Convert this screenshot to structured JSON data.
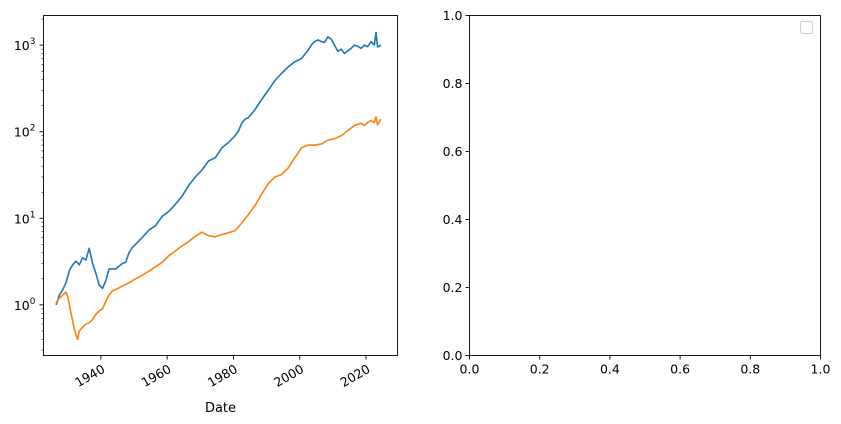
{
  "chart_data": [
    {
      "type": "line",
      "title": "",
      "xlabel": "Date",
      "ylabel": "",
      "yscale": "log",
      "xlim": [
        1922.7,
        2029.5
      ],
      "ylim": [
        0.26,
        2200
      ],
      "grid": false,
      "colors": {
        "blue": "#1f77b4",
        "orange": "#ff7f0e"
      },
      "x_ticks": [
        {
          "value": 1940,
          "label": "1940"
        },
        {
          "value": 1960,
          "label": "1960"
        },
        {
          "value": 1980,
          "label": "1980"
        },
        {
          "value": 2000,
          "label": "2000"
        },
        {
          "value": 2020,
          "label": "2020"
        }
      ],
      "y_ticks": [
        {
          "value": 1,
          "base": "10",
          "exp": "0"
        },
        {
          "value": 10,
          "base": "10",
          "exp": "1"
        },
        {
          "value": 100,
          "base": "10",
          "exp": "2"
        },
        {
          "value": 1000,
          "base": "10",
          "exp": "3"
        }
      ],
      "series": [
        {
          "color": "#1f77b4",
          "points": [
            [
              1926.5,
              1.0
            ],
            [
              1927.5,
              1.3
            ],
            [
              1928.5,
              1.5
            ],
            [
              1929.5,
              1.8
            ],
            [
              1930.5,
              2.5
            ],
            [
              1931.5,
              2.9
            ],
            [
              1932.5,
              3.2
            ],
            [
              1933.5,
              2.9
            ],
            [
              1934.5,
              3.5
            ],
            [
              1935.5,
              3.3
            ],
            [
              1936.5,
              4.5
            ],
            [
              1937.5,
              3.0
            ],
            [
              1938.5,
              2.3
            ],
            [
              1939.5,
              1.7
            ],
            [
              1940.5,
              1.55
            ],
            [
              1941.5,
              1.9
            ],
            [
              1942.5,
              2.6
            ],
            [
              1943.5,
              2.6
            ],
            [
              1944.5,
              2.6
            ],
            [
              1945.5,
              2.8
            ],
            [
              1946.5,
              3.0
            ],
            [
              1947.5,
              3.1
            ],
            [
              1948.5,
              4.0
            ],
            [
              1949.5,
              4.6
            ],
            [
              1950.5,
              5.0
            ],
            [
              1952.5,
              6.0
            ],
            [
              1954.5,
              7.3
            ],
            [
              1956.5,
              8.2
            ],
            [
              1958.5,
              10.5
            ],
            [
              1960.5,
              12.0
            ],
            [
              1962.5,
              14.5
            ],
            [
              1964.5,
              18.0
            ],
            [
              1966.5,
              24.0
            ],
            [
              1968.5,
              30.0
            ],
            [
              1970.5,
              36.0
            ],
            [
              1972.5,
              46.0
            ],
            [
              1974.5,
              50.0
            ],
            [
              1976.5,
              65.0
            ],
            [
              1978.5,
              75.0
            ],
            [
              1980.5,
              90.0
            ],
            [
              1981.5,
              102.0
            ],
            [
              1982.5,
              125.0
            ],
            [
              1983.5,
              140.0
            ],
            [
              1984.5,
              145.0
            ],
            [
              1986.5,
              180.0
            ],
            [
              1988.5,
              235.0
            ],
            [
              1990.5,
              300.0
            ],
            [
              1992.5,
              390.0
            ],
            [
              1994.5,
              470.0
            ],
            [
              1996.5,
              560.0
            ],
            [
              1998.5,
              640.0
            ],
            [
              2000.5,
              700.0
            ],
            [
              2001.5,
              780.0
            ],
            [
              2002.5,
              870.0
            ],
            [
              2003.5,
              1000.0
            ],
            [
              2004.5,
              1100.0
            ],
            [
              2005.5,
              1150.0
            ],
            [
              2006.5,
              1100.0
            ],
            [
              2007.5,
              1080.0
            ],
            [
              2008.5,
              1250.0
            ],
            [
              2009.5,
              1170.0
            ],
            [
              2010.5,
              1000.0
            ],
            [
              2011.5,
              850.0
            ],
            [
              2012.5,
              900.0
            ],
            [
              2013.5,
              800.0
            ],
            [
              2014.5,
              860.0
            ],
            [
              2015.5,
              920.0
            ],
            [
              2016.5,
              1000.0
            ],
            [
              2017.5,
              970.0
            ],
            [
              2018.5,
              920.0
            ],
            [
              2019.5,
              1000.0
            ],
            [
              2020.5,
              960.0
            ],
            [
              2021.5,
              1100.0
            ],
            [
              2022.5,
              1000.0
            ],
            [
              2023.0,
              1400.0
            ],
            [
              2023.5,
              950.0
            ],
            [
              2024.0,
              980.0
            ],
            [
              2024.5,
              1000.0
            ]
          ]
        },
        {
          "color": "#ff7f0e",
          "points": [
            [
              1926.5,
              1.05
            ],
            [
              1927.5,
              1.2
            ],
            [
              1928.5,
              1.3
            ],
            [
              1929.5,
              1.4
            ],
            [
              1930.0,
              1.25
            ],
            [
              1930.5,
              1.0
            ],
            [
              1931.0,
              0.8
            ],
            [
              1931.5,
              0.65
            ],
            [
              1932.0,
              0.52
            ],
            [
              1932.5,
              0.45
            ],
            [
              1933.0,
              0.4
            ],
            [
              1933.5,
              0.5
            ],
            [
              1934.5,
              0.55
            ],
            [
              1935.5,
              0.6
            ],
            [
              1936.5,
              0.62
            ],
            [
              1937.5,
              0.68
            ],
            [
              1938.5,
              0.78
            ],
            [
              1939.5,
              0.85
            ],
            [
              1940.5,
              0.9
            ],
            [
              1941.5,
              1.1
            ],
            [
              1942.5,
              1.3
            ],
            [
              1943.5,
              1.45
            ],
            [
              1944.5,
              1.5
            ],
            [
              1946.5,
              1.65
            ],
            [
              1948.5,
              1.8
            ],
            [
              1950.5,
              2.0
            ],
            [
              1952.5,
              2.2
            ],
            [
              1954.5,
              2.45
            ],
            [
              1956.5,
              2.75
            ],
            [
              1958.5,
              3.1
            ],
            [
              1960.5,
              3.7
            ],
            [
              1962.5,
              4.2
            ],
            [
              1964.5,
              4.8
            ],
            [
              1966.5,
              5.4
            ],
            [
              1968.5,
              6.2
            ],
            [
              1970.5,
              6.9
            ],
            [
              1972.5,
              6.3
            ],
            [
              1974.5,
              6.1
            ],
            [
              1976.5,
              6.5
            ],
            [
              1978.5,
              6.8
            ],
            [
              1980.5,
              7.2
            ],
            [
              1982.5,
              8.8
            ],
            [
              1984.5,
              11.0
            ],
            [
              1986.5,
              14.0
            ],
            [
              1988.5,
              19.0
            ],
            [
              1990.5,
              25.0
            ],
            [
              1992.5,
              30.0
            ],
            [
              1994.5,
              32.0
            ],
            [
              1996.5,
              38.0
            ],
            [
              1998.5,
              50.0
            ],
            [
              2000.5,
              65.0
            ],
            [
              2002.5,
              70.0
            ],
            [
              2004.5,
              70.0
            ],
            [
              2006.5,
              72.0
            ],
            [
              2008.5,
              80.0
            ],
            [
              2010.5,
              83.0
            ],
            [
              2012.5,
              90.0
            ],
            [
              2014.5,
              103.0
            ],
            [
              2016.5,
              118.0
            ],
            [
              2018.5,
              125.0
            ],
            [
              2019.5,
              118.0
            ],
            [
              2020.5,
              128.0
            ],
            [
              2021.5,
              135.0
            ],
            [
              2022.5,
              128.0
            ],
            [
              2023.0,
              148.0
            ],
            [
              2023.5,
              120.0
            ],
            [
              2024.0,
              130.0
            ],
            [
              2024.5,
              140.0
            ]
          ]
        }
      ]
    },
    {
      "type": "line",
      "title": "",
      "xlabel": "",
      "ylabel": "",
      "xlim": [
        0.0,
        1.0
      ],
      "ylim": [
        0.0,
        1.0
      ],
      "grid": false,
      "legend": "top-right",
      "series": [],
      "x_ticks": [
        {
          "value": 0.0,
          "label": "0.0"
        },
        {
          "value": 0.2,
          "label": "0.2"
        },
        {
          "value": 0.4,
          "label": "0.4"
        },
        {
          "value": 0.6,
          "label": "0.6"
        },
        {
          "value": 0.8,
          "label": "0.8"
        },
        {
          "value": 1.0,
          "label": "1.0"
        }
      ],
      "y_ticks": [
        {
          "value": 0.0,
          "label": "0.0"
        },
        {
          "value": 0.2,
          "label": "0.2"
        },
        {
          "value": 0.4,
          "label": "0.4"
        },
        {
          "value": 0.6,
          "label": "0.6"
        },
        {
          "value": 0.8,
          "label": "0.8"
        },
        {
          "value": 1.0,
          "label": "1.0"
        }
      ]
    }
  ]
}
